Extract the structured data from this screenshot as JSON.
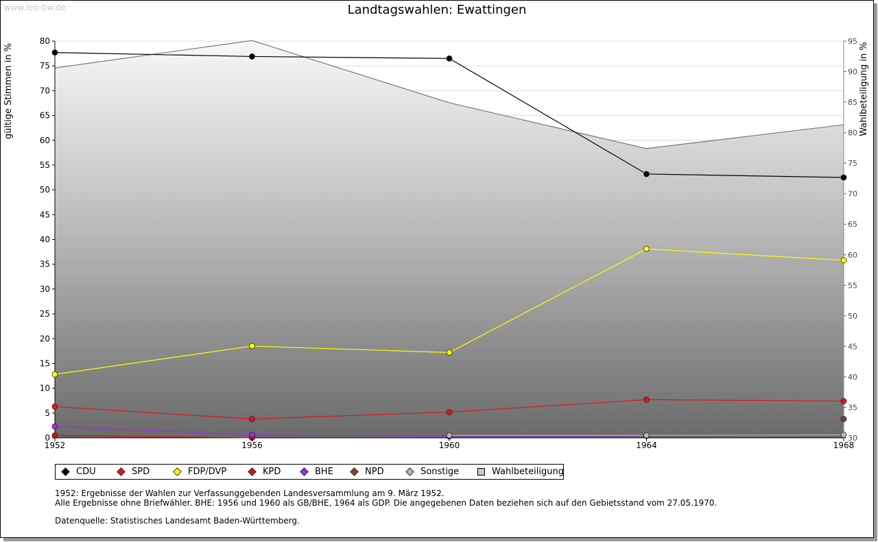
{
  "watermark": "www.leo-bw.de",
  "chart_data": {
    "type": "line",
    "title": "Landtagswahlen: Ewattingen",
    "ylabel": "gültige Stimmen in %",
    "y2label": "Wahlbeteiligung in %",
    "xlabel": "",
    "ylim": [
      0,
      80
    ],
    "y2lim": [
      30,
      95
    ],
    "categories": [
      "1952",
      "1956",
      "1960",
      "1964",
      "1968"
    ],
    "yticks": [
      "0",
      "5",
      "10",
      "15",
      "20",
      "25",
      "30",
      "35",
      "40",
      "45",
      "50",
      "55",
      "60",
      "65",
      "70",
      "75",
      "80"
    ],
    "y2ticks": [
      "30",
      "35",
      "40",
      "45",
      "50",
      "55",
      "60",
      "65",
      "70",
      "75",
      "80",
      "85",
      "90",
      "95"
    ],
    "turnout": {
      "name": "Wahlbeteiligung",
      "values": [
        90.6,
        95.1,
        84.9,
        77.4,
        81.3
      ],
      "color": "#c8c8c8"
    },
    "series": [
      {
        "name": "CDU",
        "values": [
          77.7,
          76.9,
          76.5,
          53.2,
          52.5
        ],
        "color": "#000000"
      },
      {
        "name": "SPD",
        "values": [
          6.3,
          3.8,
          5.2,
          7.7,
          7.4
        ],
        "color": "#e3141b"
      },
      {
        "name": "FDP/DVP",
        "values": [
          12.8,
          18.5,
          17.2,
          38.1,
          35.8
        ],
        "color": "#ffff00"
      },
      {
        "name": "KPD",
        "values": [
          0.5,
          0.0,
          null,
          null,
          null
        ],
        "color": "#d7120e"
      },
      {
        "name": "BHE",
        "values": [
          2.3,
          0.6,
          0.3,
          0.4,
          null
        ],
        "color": "#9b30d8"
      },
      {
        "name": "NPD",
        "values": [
          null,
          null,
          null,
          null,
          3.8
        ],
        "color": "#6e4a32"
      },
      {
        "name": "Sonstige",
        "values": [
          null,
          null,
          0.5,
          0.5,
          0.6
        ],
        "color": "#b5b5b5"
      }
    ],
    "legend": [
      {
        "label": "CDU",
        "color": "#000000",
        "shape": "diamond"
      },
      {
        "label": "SPD",
        "color": "#e3141b",
        "shape": "diamond"
      },
      {
        "label": "FDP/DVP",
        "color": "#ffff00",
        "shape": "diamond"
      },
      {
        "label": "KPD",
        "color": "#d7120e",
        "shape": "diamond"
      },
      {
        "label": "BHE",
        "color": "#9b30d8",
        "shape": "diamond"
      },
      {
        "label": "NPD",
        "color": "#6e4a32",
        "shape": "diamond"
      },
      {
        "label": "Sonstige",
        "color": "#b5b5b5",
        "shape": "diamond"
      },
      {
        "label": "Wahlbeteiligung",
        "color": "#c8c8c8",
        "shape": "square"
      }
    ]
  },
  "notes": {
    "line1": "1952: Ergebnisse der Wahlen zur Verfassunggebenden Landesversammlung am 9. März 1952.",
    "line2": "Alle Ergebnisse ohne Briefwähler. BHE: 1956 und 1960 als GB/BHE, 1964 als GDP. Die angegebenen Daten beziehen sich auf den Gebietsstand vom 27.05.1970.",
    "source": "Datenquelle: Statistisches Landesamt Baden-Württemberg."
  }
}
